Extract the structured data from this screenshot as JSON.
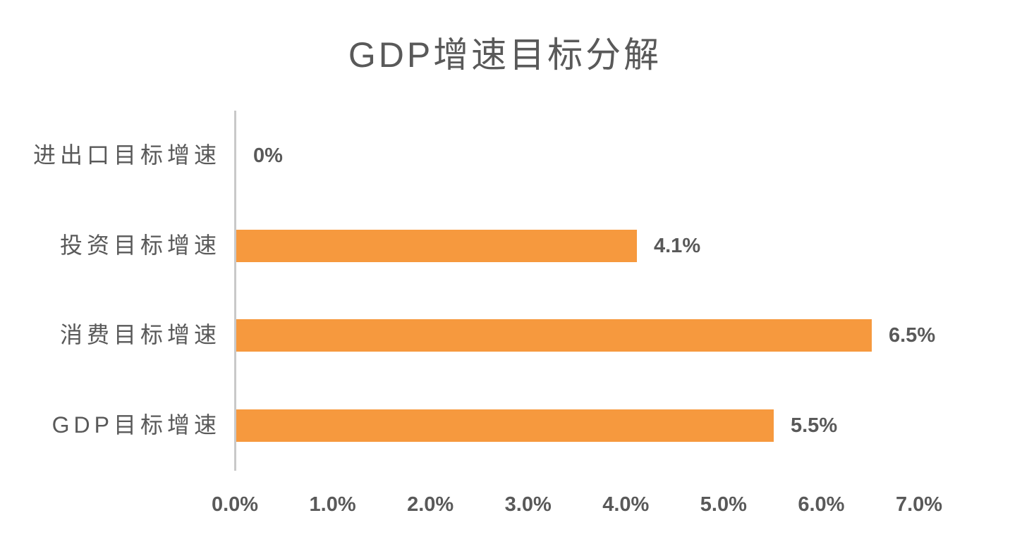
{
  "chart_data": {
    "type": "bar",
    "orientation": "horizontal",
    "title": "GDP增速目标分解",
    "categories": [
      "进出口目标增速",
      "投资目标增速",
      "消费目标增速",
      "GDP目标增速"
    ],
    "values": [
      0,
      4.1,
      6.5,
      5.5
    ],
    "data_labels": [
      "0%",
      "4.1%",
      "6.5%",
      "5.5%"
    ],
    "x_tick_labels": [
      "0.0%",
      "1.0%",
      "2.0%",
      "3.0%",
      "4.0%",
      "5.0%",
      "6.0%",
      "7.0%"
    ],
    "xlim": [
      0,
      7
    ],
    "xlabel": "",
    "ylabel": "",
    "grid": false,
    "legend": false,
    "bar_color": "#f6993e",
    "text_color": "#595959",
    "axis_line_color": "#c9c9c9"
  }
}
